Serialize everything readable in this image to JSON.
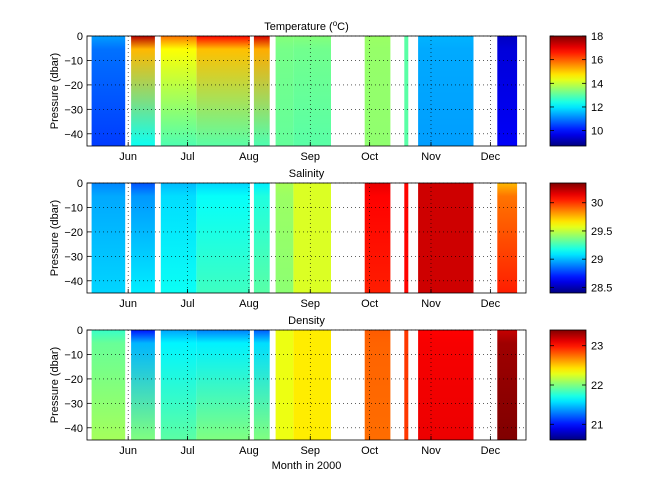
{
  "figure": {
    "xlabel": "Month in 2000"
  },
  "chart_data": [
    {
      "type": "heatmap",
      "title": "Temperature (",
      "title_superscript": "o",
      "title_suffix": "C)",
      "variable": "temperature",
      "xlabel": "",
      "ylabel": "Pressure (dbar)",
      "x_ticks": [
        "Jun",
        "Jul",
        "Aug",
        "Sep",
        "Oct",
        "Nov",
        "Dec"
      ],
      "y_ticks": [
        0,
        -10,
        -20,
        -30,
        -40
      ],
      "ylim": [
        -45,
        0
      ],
      "colorbar_ticks": [
        10,
        12,
        14,
        16,
        18
      ],
      "clim": [
        8.7,
        18
      ],
      "colormap": "jet",
      "grid": true,
      "segments": [
        {
          "start": "2000-05-14",
          "end": "2000-05-31",
          "surface": 11.3,
          "deep": 10.4
        },
        {
          "start": "2000-06-03",
          "end": "2000-06-15",
          "surface": 17.5,
          "deep": 12.3
        },
        {
          "start": "2000-06-18",
          "end": "2000-07-06",
          "surface": 15.8,
          "deep": 12.9
        },
        {
          "start": "2000-07-06",
          "end": "2000-08-02",
          "surface": 16.8,
          "deep": 13.0
        },
        {
          "start": "2000-08-04",
          "end": "2000-08-12",
          "surface": 17.2,
          "deep": 12.9
        },
        {
          "start": "2000-08-15",
          "end": "2000-08-24",
          "surface": 13.4,
          "deep": 13.1
        },
        {
          "start": "2000-08-24",
          "end": "2000-09-12",
          "surface": 13.4,
          "deep": 13.0
        },
        {
          "start": "2000-09-29",
          "end": "2000-10-12",
          "surface": 13.6,
          "deep": 13.5
        },
        {
          "start": "2000-10-19",
          "end": "2000-10-21",
          "surface": 13.0,
          "deep": 13.0
        },
        {
          "start": "2000-10-26",
          "end": "2000-11-23",
          "surface": 11.5,
          "deep": 11.3
        },
        {
          "start": "2000-12-05",
          "end": "2000-12-15",
          "surface": 9.3,
          "deep": 9.8
        }
      ]
    },
    {
      "type": "heatmap",
      "title": "Salinity",
      "variable": "salinity",
      "xlabel": "",
      "ylabel": "Pressure (dbar)",
      "x_ticks": [
        "Jun",
        "Jul",
        "Aug",
        "Sep",
        "Oct",
        "Nov",
        "Dec"
      ],
      "y_ticks": [
        0,
        -10,
        -20,
        -30,
        -40
      ],
      "ylim": [
        -45,
        0
      ],
      "colorbar_ticks": [
        28.5,
        29,
        29.5,
        30
      ],
      "clim": [
        28.4,
        30.35
      ],
      "colormap": "jet",
      "grid": true,
      "segments": [
        {
          "start": "2000-05-14",
          "end": "2000-05-31",
          "surface": 28.9,
          "deep": 29.05
        },
        {
          "start": "2000-06-03",
          "end": "2000-06-15",
          "surface": 28.8,
          "deep": 29.1
        },
        {
          "start": "2000-06-18",
          "end": "2000-07-06",
          "surface": 29.0,
          "deep": 29.15
        },
        {
          "start": "2000-07-06",
          "end": "2000-08-02",
          "surface": 29.05,
          "deep": 29.25
        },
        {
          "start": "2000-08-04",
          "end": "2000-08-12",
          "surface": 29.1,
          "deep": 29.3
        },
        {
          "start": "2000-08-15",
          "end": "2000-08-24",
          "surface": 29.45,
          "deep": 29.4
        },
        {
          "start": "2000-08-24",
          "end": "2000-09-12",
          "surface": 29.55,
          "deep": 29.55
        },
        {
          "start": "2000-09-29",
          "end": "2000-10-12",
          "surface": 30.15,
          "deep": 30.05
        },
        {
          "start": "2000-10-19",
          "end": "2000-10-21",
          "surface": 30.1,
          "deep": 30.1
        },
        {
          "start": "2000-10-26",
          "end": "2000-11-23",
          "surface": 30.2,
          "deep": 30.2
        },
        {
          "start": "2000-12-05",
          "end": "2000-12-15",
          "surface": 29.75,
          "deep": 30.05
        }
      ]
    },
    {
      "type": "heatmap",
      "title": "Density",
      "variable": "density",
      "xlabel": "Month in 2000",
      "ylabel": "Pressure (dbar)",
      "x_ticks": [
        "Jun",
        "Jul",
        "Aug",
        "Sep",
        "Oct",
        "Nov",
        "Dec"
      ],
      "y_ticks": [
        0,
        -10,
        -20,
        -30,
        -40
      ],
      "ylim": [
        -45,
        0
      ],
      "colorbar_ticks": [
        21,
        22,
        23
      ],
      "clim": [
        20.6,
        23.4
      ],
      "colormap": "jet",
      "grid": true,
      "segments": [
        {
          "start": "2000-05-14",
          "end": "2000-05-31",
          "surface": 21.8,
          "deep": 22.1
        },
        {
          "start": "2000-06-03",
          "end": "2000-06-15",
          "surface": 21.0,
          "deep": 22.0
        },
        {
          "start": "2000-06-18",
          "end": "2000-07-06",
          "surface": 21.4,
          "deep": 21.9
        },
        {
          "start": "2000-07-06",
          "end": "2000-08-02",
          "surface": 21.3,
          "deep": 22.0
        },
        {
          "start": "2000-08-04",
          "end": "2000-08-12",
          "surface": 21.2,
          "deep": 22.0
        },
        {
          "start": "2000-08-15",
          "end": "2000-08-24",
          "surface": 22.3,
          "deep": 22.3
        },
        {
          "start": "2000-08-24",
          "end": "2000-09-12",
          "surface": 22.4,
          "deep": 22.4
        },
        {
          "start": "2000-09-29",
          "end": "2000-10-12",
          "surface": 22.8,
          "deep": 22.75
        },
        {
          "start": "2000-10-19",
          "end": "2000-10-21",
          "surface": 22.9,
          "deep": 22.9
        },
        {
          "start": "2000-10-26",
          "end": "2000-11-23",
          "surface": 23.05,
          "deep": 23.1
        },
        {
          "start": "2000-12-05",
          "end": "2000-12-15",
          "surface": 23.2,
          "deep": 23.45
        }
      ]
    }
  ]
}
